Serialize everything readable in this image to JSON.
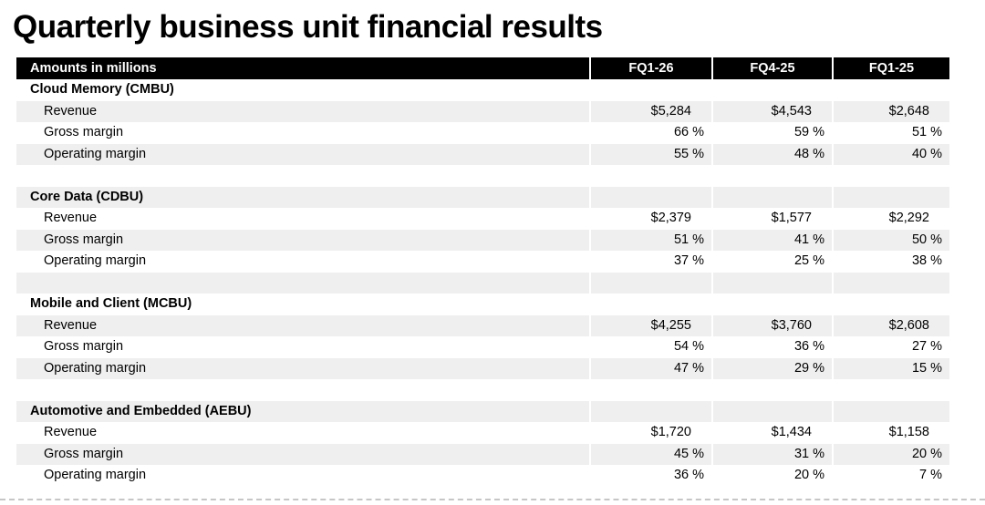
{
  "title": "Quarterly business unit financial results",
  "colors": {
    "header_bg": "#000000",
    "header_text": "#ffffff",
    "stripe": "#efefef",
    "text": "#000000",
    "page_break_rule": "#c6c6c6"
  },
  "table": {
    "header": {
      "label": "Amounts in millions",
      "columns": [
        "FQ1-26",
        "FQ4-25",
        "FQ1-25"
      ]
    },
    "sections": [
      {
        "name": "Cloud Memory (CMBU)",
        "rows": [
          {
            "label": "Revenue",
            "format": "currency",
            "values": [
              "$5,284",
              "$4,543",
              "$2,648"
            ]
          },
          {
            "label": "Gross margin",
            "format": "percent",
            "values": [
              "66 %",
              "59 %",
              "51 %"
            ]
          },
          {
            "label": "Operating margin",
            "format": "percent",
            "values": [
              "55 %",
              "48 %",
              "40 %"
            ]
          }
        ]
      },
      {
        "name": "Core Data (CDBU)",
        "rows": [
          {
            "label": "Revenue",
            "format": "currency",
            "values": [
              "$2,379",
              "$1,577",
              "$2,292"
            ]
          },
          {
            "label": "Gross margin",
            "format": "percent",
            "values": [
              "51 %",
              "41 %",
              "50 %"
            ]
          },
          {
            "label": "Operating margin",
            "format": "percent",
            "values": [
              "37 %",
              "25 %",
              "38 %"
            ]
          }
        ]
      },
      {
        "name": "Mobile and Client (MCBU)",
        "rows": [
          {
            "label": "Revenue",
            "format": "currency",
            "values": [
              "$4,255",
              "$3,760",
              "$2,608"
            ]
          },
          {
            "label": "Gross margin",
            "format": "percent",
            "values": [
              "54 %",
              "36 %",
              "27 %"
            ]
          },
          {
            "label": "Operating margin",
            "format": "percent",
            "values": [
              "47 %",
              "29 %",
              "15 %"
            ]
          }
        ]
      },
      {
        "name": "Automotive and Embedded (AEBU)",
        "rows": [
          {
            "label": "Revenue",
            "format": "currency",
            "values": [
              "$1,720",
              "$1,434",
              "$1,158"
            ]
          },
          {
            "label": "Gross margin",
            "format": "percent",
            "values": [
              "45 %",
              "31 %",
              "20 %"
            ]
          },
          {
            "label": "Operating margin",
            "format": "percent",
            "values": [
              "36 %",
              "20 %",
              "7 %"
            ]
          }
        ]
      }
    ]
  }
}
